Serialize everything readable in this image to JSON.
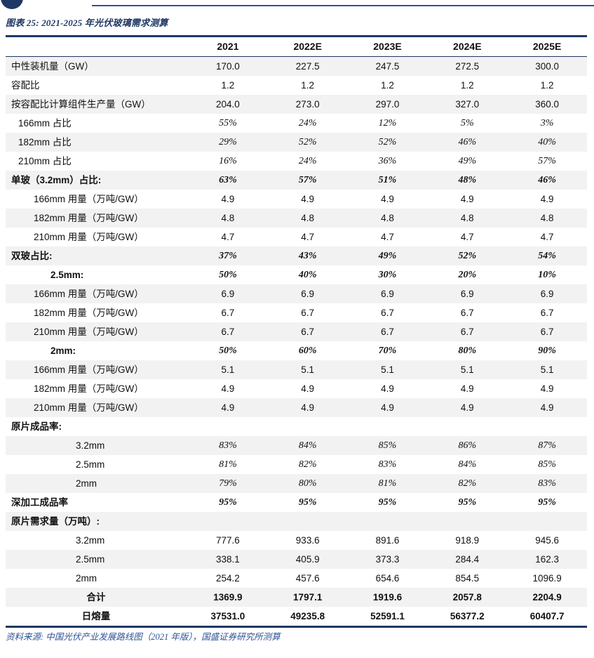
{
  "theme": {
    "navy": "#1F3864",
    "blue": "#2E5395",
    "stripe": "#F2F2F2",
    "ink": "#111111"
  },
  "page": {
    "figure_label": "图表 25: 2021-2025 年光伏玻璃需求测算",
    "source": "资料来源: 中国光伏产业发展路线图（2021 年版），国盛证券研究所测算"
  },
  "table": {
    "columns": [
      "",
      "2021",
      "2022E",
      "2023E",
      "2024E",
      "2025E"
    ],
    "rows": [
      {
        "label": "中性装机量（GW）",
        "indent": 0,
        "labelBold": false,
        "valueStyle": "normal",
        "values": [
          "170.0",
          "227.5",
          "247.5",
          "272.5",
          "300.0"
        ]
      },
      {
        "label": "容配比",
        "indent": 0,
        "labelBold": false,
        "valueStyle": "normal",
        "values": [
          "1.2",
          "1.2",
          "1.2",
          "1.2",
          "1.2"
        ]
      },
      {
        "label": "按容配比计算组件生产量（GW）",
        "indent": 0,
        "labelBold": false,
        "valueStyle": "normal",
        "values": [
          "204.0",
          "273.0",
          "297.0",
          "327.0",
          "360.0"
        ]
      },
      {
        "label": "166mm 占比",
        "indent": 1,
        "labelBold": false,
        "valueStyle": "italic",
        "values": [
          "55%",
          "24%",
          "12%",
          "5%",
          "3%"
        ]
      },
      {
        "label": "182mm 占比",
        "indent": 1,
        "labelBold": false,
        "valueStyle": "italic",
        "values": [
          "29%",
          "52%",
          "52%",
          "46%",
          "40%"
        ]
      },
      {
        "label": "210mm 占比",
        "indent": 1,
        "labelBold": false,
        "valueStyle": "italic",
        "values": [
          "16%",
          "24%",
          "36%",
          "49%",
          "57%"
        ]
      },
      {
        "label": "单玻（3.2mm）占比:",
        "indent": 0,
        "labelBold": true,
        "valueStyle": "bolditalic",
        "values": [
          "63%",
          "57%",
          "51%",
          "48%",
          "46%"
        ]
      },
      {
        "label": "166mm 用量（万吨/GW）",
        "indent": 2,
        "labelBold": false,
        "valueStyle": "normal",
        "values": [
          "4.9",
          "4.9",
          "4.9",
          "4.9",
          "4.9"
        ]
      },
      {
        "label": "182mm 用量（万吨/GW）",
        "indent": 2,
        "labelBold": false,
        "valueStyle": "normal",
        "values": [
          "4.8",
          "4.8",
          "4.8",
          "4.8",
          "4.8"
        ]
      },
      {
        "label": "210mm 用量（万吨/GW）",
        "indent": 2,
        "labelBold": false,
        "valueStyle": "normal",
        "values": [
          "4.7",
          "4.7",
          "4.7",
          "4.7",
          "4.7"
        ]
      },
      {
        "label": "双玻占比:",
        "indent": 0,
        "labelBold": true,
        "valueStyle": "bolditalic",
        "values": [
          "37%",
          "43%",
          "49%",
          "52%",
          "54%"
        ]
      },
      {
        "label": "2.5mm:",
        "indent": 3,
        "labelBold": true,
        "valueStyle": "bolditalic",
        "values": [
          "50%",
          "40%",
          "30%",
          "20%",
          "10%"
        ]
      },
      {
        "label": "166mm 用量（万吨/GW）",
        "indent": 2,
        "labelBold": false,
        "valueStyle": "normal",
        "values": [
          "6.9",
          "6.9",
          "6.9",
          "6.9",
          "6.9"
        ]
      },
      {
        "label": "182mm 用量（万吨/GW）",
        "indent": 2,
        "labelBold": false,
        "valueStyle": "normal",
        "values": [
          "6.7",
          "6.7",
          "6.7",
          "6.7",
          "6.7"
        ]
      },
      {
        "label": "210mm 用量（万吨/GW）",
        "indent": 2,
        "labelBold": false,
        "valueStyle": "normal",
        "values": [
          "6.7",
          "6.7",
          "6.7",
          "6.7",
          "6.7"
        ]
      },
      {
        "label": "2mm:",
        "indent": 3,
        "labelBold": true,
        "valueStyle": "bolditalic",
        "values": [
          "50%",
          "60%",
          "70%",
          "80%",
          "90%"
        ]
      },
      {
        "label": "166mm 用量（万吨/GW）",
        "indent": 2,
        "labelBold": false,
        "valueStyle": "normal",
        "values": [
          "5.1",
          "5.1",
          "5.1",
          "5.1",
          "5.1"
        ]
      },
      {
        "label": "182mm 用量（万吨/GW）",
        "indent": 2,
        "labelBold": false,
        "valueStyle": "normal",
        "values": [
          "4.9",
          "4.9",
          "4.9",
          "4.9",
          "4.9"
        ]
      },
      {
        "label": "210mm 用量（万吨/GW）",
        "indent": 2,
        "labelBold": false,
        "valueStyle": "normal",
        "values": [
          "4.9",
          "4.9",
          "4.9",
          "4.9",
          "4.9"
        ]
      },
      {
        "label": "原片成品率:",
        "indent": 0,
        "labelBold": true,
        "valueStyle": "normal",
        "values": [
          "",
          "",
          "",
          "",
          ""
        ]
      },
      {
        "label": "3.2mm",
        "indent": 4,
        "labelBold": false,
        "valueStyle": "italic",
        "values": [
          "83%",
          "84%",
          "85%",
          "86%",
          "87%"
        ]
      },
      {
        "label": "2.5mm",
        "indent": 4,
        "labelBold": false,
        "valueStyle": "italic",
        "values": [
          "81%",
          "82%",
          "83%",
          "84%",
          "85%"
        ]
      },
      {
        "label": "2mm",
        "indent": 4,
        "labelBold": false,
        "valueStyle": "italic",
        "values": [
          "79%",
          "80%",
          "81%",
          "82%",
          "83%"
        ]
      },
      {
        "label": "深加工成品率",
        "indent": 0,
        "labelBold": true,
        "valueStyle": "bolditalic",
        "values": [
          "95%",
          "95%",
          "95%",
          "95%",
          "95%"
        ]
      },
      {
        "label": "原片需求量（万吨）:",
        "indent": 0,
        "labelBold": true,
        "valueStyle": "normal",
        "values": [
          "",
          "",
          "",
          "",
          ""
        ]
      },
      {
        "label": "3.2mm",
        "indent": 4,
        "labelBold": false,
        "valueStyle": "normal",
        "values": [
          "777.6",
          "933.6",
          "891.6",
          "918.9",
          "945.6"
        ]
      },
      {
        "label": "2.5mm",
        "indent": 4,
        "labelBold": false,
        "valueStyle": "normal",
        "values": [
          "338.1",
          "405.9",
          "373.3",
          "284.4",
          "162.3"
        ]
      },
      {
        "label": "2mm",
        "indent": 4,
        "labelBold": false,
        "valueStyle": "normal",
        "values": [
          "254.2",
          "457.6",
          "654.6",
          "854.5",
          "1096.9"
        ]
      },
      {
        "label": "合计",
        "indent": 0,
        "labelAlign": "center",
        "labelBold": true,
        "valueStyle": "bold",
        "values": [
          "1369.9",
          "1797.1",
          "1919.6",
          "2057.8",
          "2204.9"
        ]
      },
      {
        "label": "日熔量",
        "indent": 0,
        "labelAlign": "center",
        "labelBold": true,
        "valueStyle": "bold",
        "values": [
          "37531.0",
          "49235.8",
          "52591.1",
          "56377.2",
          "60407.7"
        ]
      }
    ]
  }
}
